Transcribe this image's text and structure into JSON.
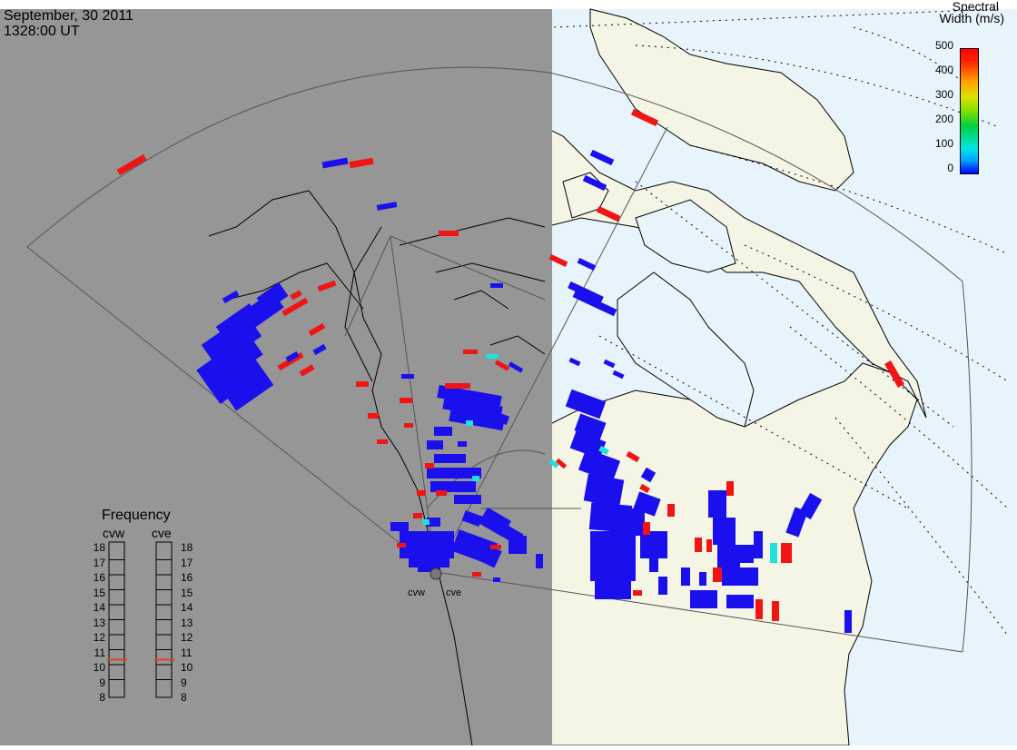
{
  "header": {
    "date": "September, 30 2011",
    "time": "1328:00 UT"
  },
  "colorbar": {
    "title_line1": "Spectral",
    "title_line2": "Width (m/s)",
    "ticks": [
      "500",
      "400",
      "300",
      "200",
      "100",
      "0"
    ],
    "min": 0,
    "max": 500,
    "colors": [
      "#0000ff",
      "#00e6e6",
      "#00d040",
      "#e0e000",
      "#ffa000",
      "#ff0000"
    ]
  },
  "frequency_panel": {
    "title": "Frequency",
    "radars": [
      {
        "name": "cvw",
        "selected_mhz": 10.7,
        "marker_color": "#e8401a"
      },
      {
        "name": "cve",
        "selected_mhz": 10.7,
        "marker_color": "#e8401a"
      }
    ],
    "scale": [
      "18",
      "17",
      "16",
      "15",
      "14",
      "13",
      "12",
      "11",
      "10",
      "9",
      "8"
    ]
  },
  "sites": [
    {
      "label": "cvw"
    },
    {
      "label": "cve"
    }
  ],
  "map": {
    "night_color": "#969696",
    "day_land_color": "#f5f5e6",
    "day_ocean_color": "#e8f4fc",
    "echo_colors": {
      "low": "#1a10ee",
      "high": "#f01414",
      "mid": "#20e0e0"
    }
  }
}
